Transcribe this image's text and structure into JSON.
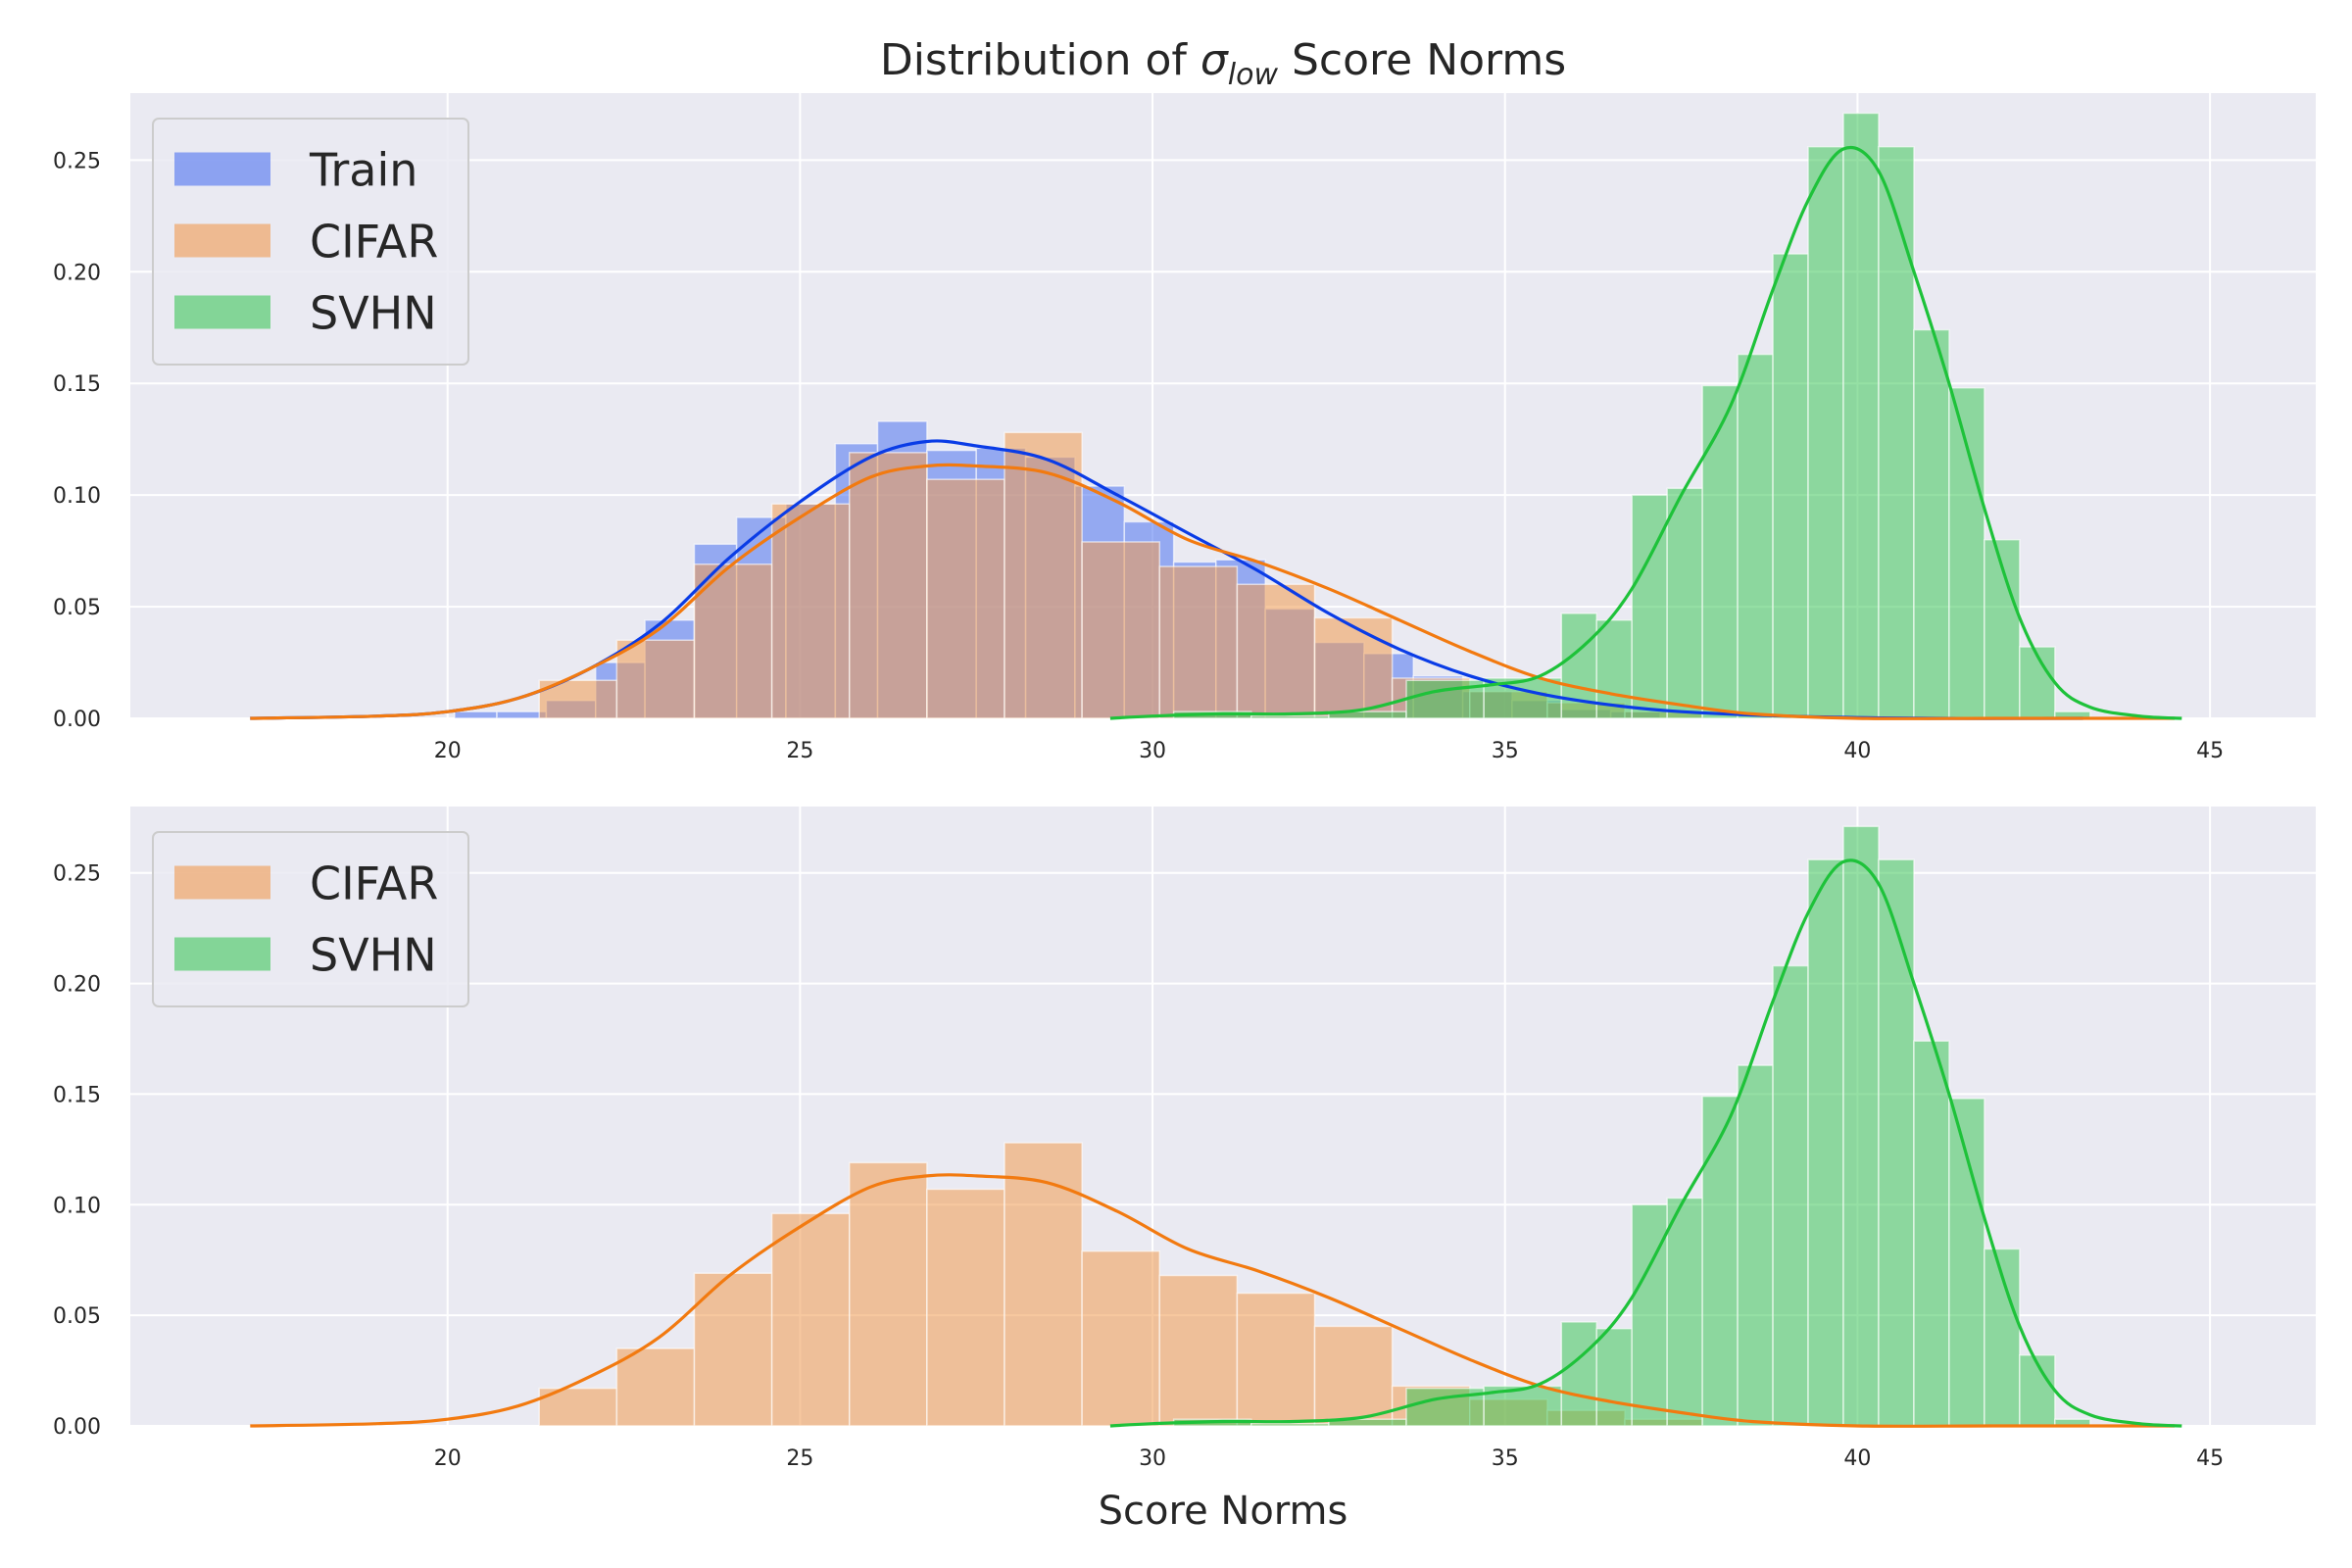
{
  "title": {
    "prefix": "Distribution of ",
    "symbol": "σ",
    "subscript": "low",
    "suffix": " Score Norms"
  },
  "xlabel": "Score Norms",
  "colors": {
    "background": "#eaeaf2",
    "grid": "#ffffff",
    "Train": {
      "fill": "#4c72f0",
      "line": "#0a3ce6"
    },
    "CIFAR": {
      "fill": "#f09a50",
      "line": "#f27a10"
    },
    "SVHN": {
      "fill": "#3ec65a",
      "line": "#1ec23a"
    }
  },
  "chart_data": [
    {
      "type": "histogram+kde",
      "xlim": [
        15.5,
        46.5
      ],
      "ylim": [
        0,
        0.28
      ],
      "xticks": [
        20,
        25,
        30,
        35,
        40,
        45
      ],
      "yticks": [
        "0.00",
        "0.05",
        "0.10",
        "0.15",
        "0.20",
        "0.25"
      ],
      "legend": {
        "position": "upper-left",
        "entries": [
          "Train",
          "CIFAR",
          "SVHN"
        ]
      },
      "grid": true,
      "series": [
        {
          "name": "Train",
          "bins": [
            [
              20.1,
              20.7,
              0.003
            ],
            [
              20.7,
              21.4,
              0.003
            ],
            [
              21.4,
              22.1,
              0.008
            ],
            [
              22.1,
              22.8,
              0.025
            ],
            [
              22.8,
              23.5,
              0.044
            ],
            [
              23.5,
              24.1,
              0.078
            ],
            [
              24.1,
              24.8,
              0.09
            ],
            [
              24.8,
              25.5,
              0.096
            ],
            [
              25.5,
              26.1,
              0.123
            ],
            [
              26.1,
              26.8,
              0.133
            ],
            [
              26.8,
              27.5,
              0.12
            ],
            [
              27.5,
              28.2,
              0.121
            ],
            [
              28.2,
              28.9,
              0.117
            ],
            [
              28.9,
              29.6,
              0.104
            ],
            [
              29.6,
              30.3,
              0.088
            ],
            [
              30.3,
              30.9,
              0.07
            ],
            [
              30.9,
              31.6,
              0.071
            ],
            [
              31.6,
              32.3,
              0.049
            ],
            [
              32.3,
              33.0,
              0.034
            ],
            [
              33.0,
              33.7,
              0.029
            ],
            [
              33.7,
              34.4,
              0.019
            ],
            [
              34.4,
              35.1,
              0.012
            ],
            [
              35.1,
              35.8,
              0.008
            ],
            [
              35.8,
              36.5,
              0.004
            ],
            [
              36.5,
              37.2,
              0.003
            ]
          ],
          "kde": [
            [
              17.2,
              0
            ],
            [
              19,
              0.001
            ],
            [
              20,
              0.003
            ],
            [
              21,
              0.009
            ],
            [
              22,
              0.022
            ],
            [
              23,
              0.042
            ],
            [
              24,
              0.072
            ],
            [
              25,
              0.097
            ],
            [
              26,
              0.117
            ],
            [
              26.8,
              0.124
            ],
            [
              27.5,
              0.122
            ],
            [
              28.5,
              0.116
            ],
            [
              29.5,
              0.1
            ],
            [
              30.5,
              0.083
            ],
            [
              31.5,
              0.066
            ],
            [
              32.5,
              0.047
            ],
            [
              33.5,
              0.031
            ],
            [
              34.5,
              0.019
            ],
            [
              35.5,
              0.011
            ],
            [
              36.5,
              0.006
            ],
            [
              37.5,
              0.003
            ],
            [
              39,
              0.001
            ],
            [
              41,
              0
            ],
            [
              43.2,
              0
            ]
          ]
        },
        {
          "name": "CIFAR",
          "bins": [
            [
              21.3,
              22.4,
              0.017
            ],
            [
              22.4,
              23.5,
              0.035
            ],
            [
              23.5,
              24.6,
              0.069
            ],
            [
              24.6,
              25.7,
              0.096
            ],
            [
              25.7,
              26.8,
              0.119
            ],
            [
              26.8,
              27.9,
              0.107
            ],
            [
              27.9,
              29.0,
              0.128
            ],
            [
              29.0,
              30.1,
              0.079
            ],
            [
              30.1,
              31.2,
              0.068
            ],
            [
              31.2,
              32.3,
              0.06
            ],
            [
              32.3,
              33.4,
              0.045
            ],
            [
              33.4,
              34.5,
              0.018
            ],
            [
              34.5,
              35.6,
              0.012
            ],
            [
              35.6,
              36.7,
              0.007
            ],
            [
              36.7,
              37.8,
              0.003
            ]
          ],
          "kde": [
            [
              17.2,
              0
            ],
            [
              19,
              0.001
            ],
            [
              20,
              0.003
            ],
            [
              21,
              0.009
            ],
            [
              22,
              0.022
            ],
            [
              23,
              0.04
            ],
            [
              24,
              0.068
            ],
            [
              25,
              0.09
            ],
            [
              26,
              0.108
            ],
            [
              26.8,
              0.113
            ],
            [
              27.5,
              0.113
            ],
            [
              28.5,
              0.11
            ],
            [
              29.5,
              0.097
            ],
            [
              30.5,
              0.08
            ],
            [
              31.5,
              0.07
            ],
            [
              32.5,
              0.058
            ],
            [
              33.5,
              0.044
            ],
            [
              34.5,
              0.03
            ],
            [
              35.5,
              0.018
            ],
            [
              36.5,
              0.011
            ],
            [
              37.5,
              0.006
            ],
            [
              38.5,
              0.002
            ],
            [
              40,
              0
            ],
            [
              42,
              0
            ],
            [
              44.5,
              0
            ]
          ]
        },
        {
          "name": "SVHN",
          "bins": [
            [
              30.3,
              31.4,
              0.003
            ],
            [
              31.4,
              32.5,
              0.001
            ],
            [
              32.5,
              33.6,
              0.003
            ],
            [
              33.6,
              34.7,
              0.017
            ],
            [
              34.7,
              35.8,
              0.018
            ],
            [
              35.8,
              36.3,
              0.047
            ],
            [
              36.3,
              36.8,
              0.044
            ],
            [
              36.8,
              37.3,
              0.1
            ],
            [
              37.3,
              37.8,
              0.103
            ],
            [
              37.8,
              38.3,
              0.149
            ],
            [
              38.3,
              38.8,
              0.163
            ],
            [
              38.8,
              39.3,
              0.208
            ],
            [
              39.3,
              39.8,
              0.256
            ],
            [
              39.8,
              40.3,
              0.271
            ],
            [
              40.3,
              40.8,
              0.256
            ],
            [
              40.8,
              41.3,
              0.174
            ],
            [
              41.3,
              41.8,
              0.148
            ],
            [
              41.8,
              42.3,
              0.08
            ],
            [
              42.3,
              42.8,
              0.032
            ],
            [
              42.8,
              43.3,
              0.003
            ]
          ],
          "kde": [
            [
              29.4,
              0
            ],
            [
              30,
              0.001
            ],
            [
              31,
              0.002
            ],
            [
              32,
              0.002
            ],
            [
              33,
              0.004
            ],
            [
              34,
              0.012
            ],
            [
              34.8,
              0.015
            ],
            [
              35.5,
              0.019
            ],
            [
              36.2,
              0.035
            ],
            [
              36.8,
              0.058
            ],
            [
              37.5,
              0.1
            ],
            [
              38.2,
              0.14
            ],
            [
              38.8,
              0.192
            ],
            [
              39.3,
              0.232
            ],
            [
              39.8,
              0.255
            ],
            [
              40.3,
              0.245
            ],
            [
              40.8,
              0.2
            ],
            [
              41.3,
              0.15
            ],
            [
              41.8,
              0.094
            ],
            [
              42.3,
              0.045
            ],
            [
              42.8,
              0.016
            ],
            [
              43.3,
              0.005
            ],
            [
              44,
              0.001
            ],
            [
              44.6,
              0
            ]
          ]
        }
      ]
    },
    {
      "type": "histogram+kde",
      "xlim": [
        15.5,
        46.5
      ],
      "ylim": [
        0,
        0.28
      ],
      "xticks": [
        20,
        25,
        30,
        35,
        40,
        45
      ],
      "yticks": [
        "0.00",
        "0.05",
        "0.10",
        "0.15",
        "0.20",
        "0.25"
      ],
      "legend": {
        "position": "upper-left",
        "entries": [
          "CIFAR",
          "SVHN"
        ]
      },
      "grid": true,
      "series": [
        {
          "name": "CIFAR",
          "bins": [
            [
              21.3,
              22.4,
              0.017
            ],
            [
              22.4,
              23.5,
              0.035
            ],
            [
              23.5,
              24.6,
              0.069
            ],
            [
              24.6,
              25.7,
              0.096
            ],
            [
              25.7,
              26.8,
              0.119
            ],
            [
              26.8,
              27.9,
              0.107
            ],
            [
              27.9,
              29.0,
              0.128
            ],
            [
              29.0,
              30.1,
              0.079
            ],
            [
              30.1,
              31.2,
              0.068
            ],
            [
              31.2,
              32.3,
              0.06
            ],
            [
              32.3,
              33.4,
              0.045
            ],
            [
              33.4,
              34.5,
              0.018
            ],
            [
              34.5,
              35.6,
              0.012
            ],
            [
              35.6,
              36.7,
              0.007
            ],
            [
              36.7,
              37.8,
              0.003
            ]
          ],
          "kde": [
            [
              17.2,
              0
            ],
            [
              19,
              0.001
            ],
            [
              20,
              0.003
            ],
            [
              21,
              0.009
            ],
            [
              22,
              0.022
            ],
            [
              23,
              0.04
            ],
            [
              24,
              0.068
            ],
            [
              25,
              0.09
            ],
            [
              26,
              0.108
            ],
            [
              26.8,
              0.113
            ],
            [
              27.5,
              0.113
            ],
            [
              28.5,
              0.11
            ],
            [
              29.5,
              0.097
            ],
            [
              30.5,
              0.08
            ],
            [
              31.5,
              0.07
            ],
            [
              32.5,
              0.058
            ],
            [
              33.5,
              0.044
            ],
            [
              34.5,
              0.03
            ],
            [
              35.5,
              0.018
            ],
            [
              36.5,
              0.011
            ],
            [
              37.5,
              0.006
            ],
            [
              38.5,
              0.002
            ],
            [
              40,
              0
            ],
            [
              42,
              0
            ],
            [
              44.5,
              0
            ]
          ]
        },
        {
          "name": "SVHN",
          "bins": [
            [
              30.3,
              31.4,
              0.003
            ],
            [
              31.4,
              32.5,
              0.001
            ],
            [
              32.5,
              33.6,
              0.003
            ],
            [
              33.6,
              34.7,
              0.017
            ],
            [
              34.7,
              35.8,
              0.018
            ],
            [
              35.8,
              36.3,
              0.047
            ],
            [
              36.3,
              36.8,
              0.044
            ],
            [
              36.8,
              37.3,
              0.1
            ],
            [
              37.3,
              37.8,
              0.103
            ],
            [
              37.8,
              38.3,
              0.149
            ],
            [
              38.3,
              38.8,
              0.163
            ],
            [
              38.8,
              39.3,
              0.208
            ],
            [
              39.3,
              39.8,
              0.256
            ],
            [
              39.8,
              40.3,
              0.271
            ],
            [
              40.3,
              40.8,
              0.256
            ],
            [
              40.8,
              41.3,
              0.174
            ],
            [
              41.3,
              41.8,
              0.148
            ],
            [
              41.8,
              42.3,
              0.08
            ],
            [
              42.3,
              42.8,
              0.032
            ],
            [
              42.8,
              43.3,
              0.003
            ]
          ],
          "kde": [
            [
              29.4,
              0
            ],
            [
              30,
              0.001
            ],
            [
              31,
              0.002
            ],
            [
              32,
              0.002
            ],
            [
              33,
              0.004
            ],
            [
              34,
              0.012
            ],
            [
              34.8,
              0.015
            ],
            [
              35.5,
              0.019
            ],
            [
              36.2,
              0.035
            ],
            [
              36.8,
              0.058
            ],
            [
              37.5,
              0.1
            ],
            [
              38.2,
              0.14
            ],
            [
              38.8,
              0.192
            ],
            [
              39.3,
              0.232
            ],
            [
              39.8,
              0.255
            ],
            [
              40.3,
              0.245
            ],
            [
              40.8,
              0.2
            ],
            [
              41.3,
              0.15
            ],
            [
              41.8,
              0.094
            ],
            [
              42.3,
              0.045
            ],
            [
              42.8,
              0.016
            ],
            [
              43.3,
              0.005
            ],
            [
              44,
              0.001
            ],
            [
              44.6,
              0
            ]
          ]
        }
      ]
    }
  ]
}
